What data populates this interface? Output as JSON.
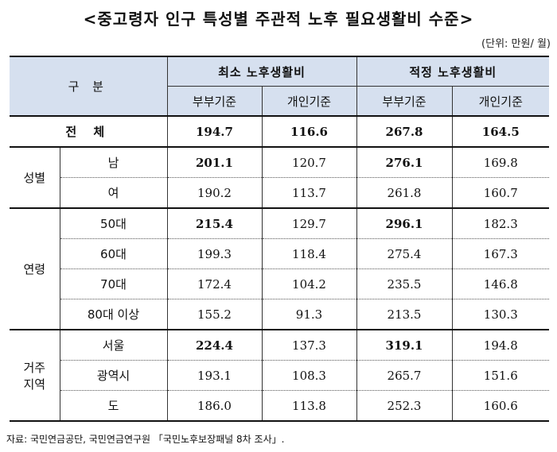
{
  "title": "<중고령자 인구 특성별 주관적 노후 필요생활비 수준>",
  "unit": "(단위: 만원/ 월)",
  "header": {
    "category": "구  분",
    "group_min": "최소 노후생활비",
    "group_proper": "적정 노후생활비",
    "sub_couple": "부부기준",
    "sub_individual": "개인기준"
  },
  "total": {
    "label": "전  체",
    "values": [
      "194.7",
      "116.6",
      "267.8",
      "164.5"
    ]
  },
  "gender": {
    "label": "성별",
    "rows": [
      {
        "label": "남",
        "values": [
          "201.1",
          "120.7",
          "276.1",
          "169.8"
        ]
      },
      {
        "label": "여",
        "values": [
          "190.2",
          "113.7",
          "261.8",
          "160.7"
        ]
      }
    ]
  },
  "age": {
    "label": "연령",
    "rows": [
      {
        "label": "50대",
        "values": [
          "215.4",
          "129.7",
          "296.1",
          "182.3"
        ]
      },
      {
        "label": "60대",
        "values": [
          "199.3",
          "118.4",
          "275.4",
          "167.3"
        ]
      },
      {
        "label": "70대",
        "values": [
          "172.4",
          "104.2",
          "235.5",
          "146.8"
        ]
      },
      {
        "label": "80대 이상",
        "values": [
          "155.2",
          "91.3",
          "213.5",
          "130.3"
        ]
      }
    ]
  },
  "region": {
    "label_line1": "거주",
    "label_line2": "지역",
    "rows": [
      {
        "label": "서울",
        "values": [
          "224.4",
          "137.3",
          "319.1",
          "194.8"
        ]
      },
      {
        "label": "광역시",
        "values": [
          "193.1",
          "108.3",
          "265.7",
          "151.6"
        ]
      },
      {
        "label": "도",
        "values": [
          "186.0",
          "113.8",
          "252.3",
          "160.6"
        ]
      }
    ]
  },
  "source": "자료: 국민연금공단, 국민연금연구원 「국민노후보장패널 8차 조사」."
}
